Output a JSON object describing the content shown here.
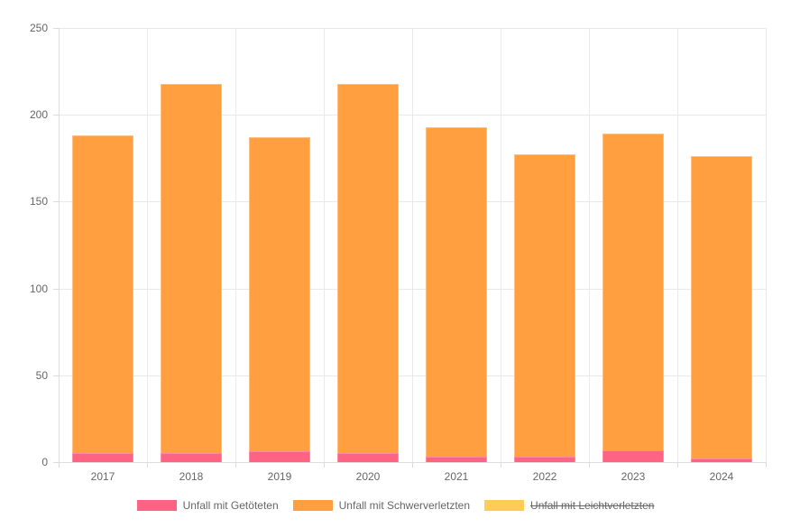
{
  "chart_data": {
    "type": "bar",
    "stacked": true,
    "title": "",
    "xlabel": "",
    "ylabel": "",
    "categories": [
      "2017",
      "2018",
      "2019",
      "2020",
      "2021",
      "2022",
      "2023",
      "2024"
    ],
    "series": [
      {
        "name": "Unfall mit Getöteten",
        "color": "#FF6384",
        "border_color": "#FF8AA5",
        "hidden": false,
        "values": [
          5,
          5,
          6,
          5,
          3,
          3,
          7,
          2
        ]
      },
      {
        "name": "Unfall mit Schwerverletzten",
        "color": "#FF9F40",
        "border_color": "#FFBE82",
        "hidden": false,
        "values": [
          183,
          213,
          181,
          213,
          190,
          174,
          182,
          174
        ]
      },
      {
        "name": "Unfall mit Leichtverletzten",
        "color": "#FFCD56",
        "border_color": "#FFDE8C",
        "hidden": true,
        "values": []
      }
    ],
    "stacked_totals_visible": [
      188,
      218,
      187,
      218,
      193,
      177,
      189,
      176
    ],
    "ylim": [
      0,
      250
    ],
    "yticks": [
      0,
      50,
      100,
      150,
      200,
      250
    ],
    "grid": true,
    "legend_position": "bottom"
  },
  "style": {
    "background": "#FFFFFF",
    "grid_color": "#E9E9E9",
    "axis_color": "#DCDCDC",
    "tick_text_color": "#666666"
  }
}
